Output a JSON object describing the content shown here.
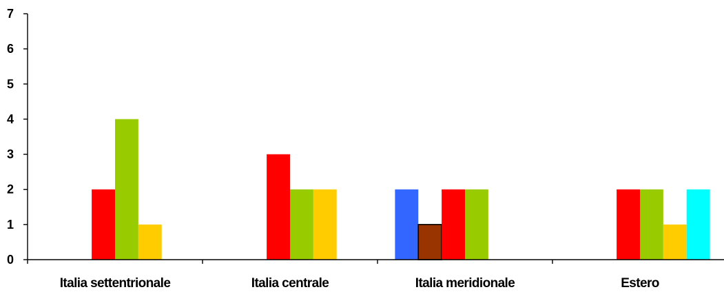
{
  "chart_data": {
    "type": "bar",
    "title": "",
    "xlabel": "",
    "ylabel": "",
    "ylim": [
      0,
      7
    ],
    "yticks": [
      0,
      1,
      2,
      3,
      4,
      5,
      6,
      7
    ],
    "grid": false,
    "legend": "none",
    "categories": [
      "Italia settentrionale",
      "Italia centrale",
      "Italia meridionale",
      "Estero"
    ],
    "series": [
      {
        "color": "#3366FF",
        "values": [
          0,
          0,
          2,
          0
        ]
      },
      {
        "color": "#993300",
        "outlined": true,
        "values": [
          0,
          0,
          1,
          0
        ]
      },
      {
        "color": "#FF0000",
        "values": [
          2,
          3,
          2,
          2
        ]
      },
      {
        "color": "#99CC00",
        "values": [
          4,
          2,
          2,
          2
        ]
      },
      {
        "color": "#FFCC00",
        "values": [
          1,
          2,
          0,
          1
        ]
      },
      {
        "color": "#00FFFF",
        "values": [
          0,
          0,
          0,
          2
        ]
      }
    ]
  }
}
